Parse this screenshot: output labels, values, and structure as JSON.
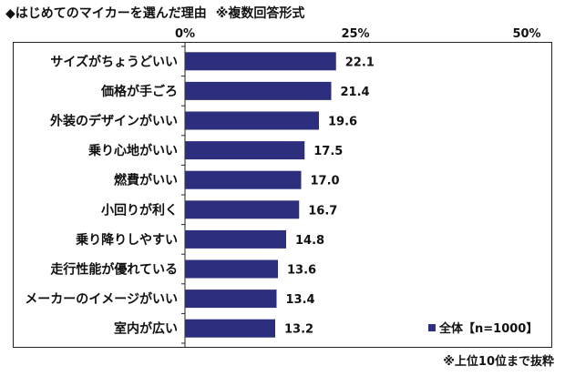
{
  "header": {
    "title": "◆はじめてのマイカーを選んだ理由",
    "note": "※複数回答形式"
  },
  "footnote": "※上位10位まで抜粋",
  "colors": {
    "bar": "#2e2e7e",
    "axis": "#222222",
    "text": "#111111"
  },
  "chart_data": {
    "type": "bar",
    "orientation": "horizontal",
    "categories": [
      "サイズがちょうどいい",
      "価格が手ごろ",
      "外装のデザインがいい",
      "乗り心地がいい",
      "燃費がいい",
      "小回りが利く",
      "乗り降りしやすい",
      "走行性能が優れている",
      "メーカーのイメージがいい",
      "室内が広い"
    ],
    "series": [
      {
        "name": "全体【n=1000】",
        "values": [
          22.1,
          21.4,
          19.6,
          17.5,
          17.0,
          16.7,
          14.8,
          13.6,
          13.4,
          13.2
        ]
      }
    ],
    "value_labels": [
      "22.1",
      "21.4",
      "19.6",
      "17.5",
      "17.0",
      "16.7",
      "14.8",
      "13.6",
      "13.4",
      "13.2"
    ],
    "xlim": [
      0,
      50
    ],
    "ticks": [
      0,
      25,
      50
    ],
    "tick_labels": [
      "0%",
      "25%",
      "50%"
    ],
    "unit": "%",
    "grid": false,
    "legend_position": "bottom-right"
  }
}
